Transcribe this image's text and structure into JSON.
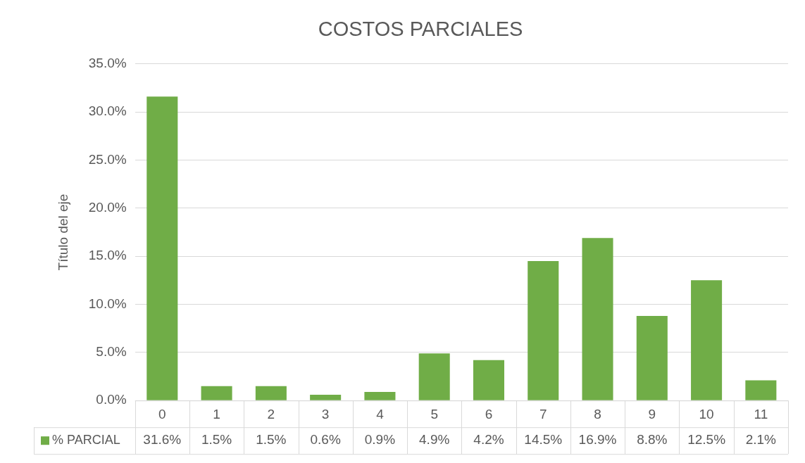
{
  "chart_data": {
    "type": "bar",
    "title": "COSTOS PARCIALES",
    "ylabel": "Título del eje",
    "categories": [
      "0",
      "1",
      "2",
      "3",
      "4",
      "5",
      "6",
      "7",
      "8",
      "9",
      "10",
      "11"
    ],
    "series": [
      {
        "name": "% PARCIAL",
        "color": "#70ad47",
        "values": [
          31.6,
          1.5,
          1.5,
          0.6,
          0.9,
          4.9,
          4.2,
          14.5,
          16.9,
          8.8,
          12.5,
          2.1
        ],
        "value_labels": [
          "31.6%",
          "1.5%",
          "1.5%",
          "0.6%",
          "0.9%",
          "4.9%",
          "4.2%",
          "14.5%",
          "16.9%",
          "8.8%",
          "12.5%",
          "2.1%"
        ]
      }
    ],
    "ylim": [
      0,
      35
    ],
    "yticks": [
      {
        "value": 0,
        "label": "0.0%"
      },
      {
        "value": 5,
        "label": "5.0%"
      },
      {
        "value": 10,
        "label": "10.0%"
      },
      {
        "value": 15,
        "label": "15.0%"
      },
      {
        "value": 20,
        "label": "20.0%"
      },
      {
        "value": 25,
        "label": "25.0%"
      },
      {
        "value": 30,
        "label": "30.0%"
      },
      {
        "value": 35,
        "label": "35.0%"
      }
    ],
    "grid": "y",
    "legend": "bottom"
  }
}
